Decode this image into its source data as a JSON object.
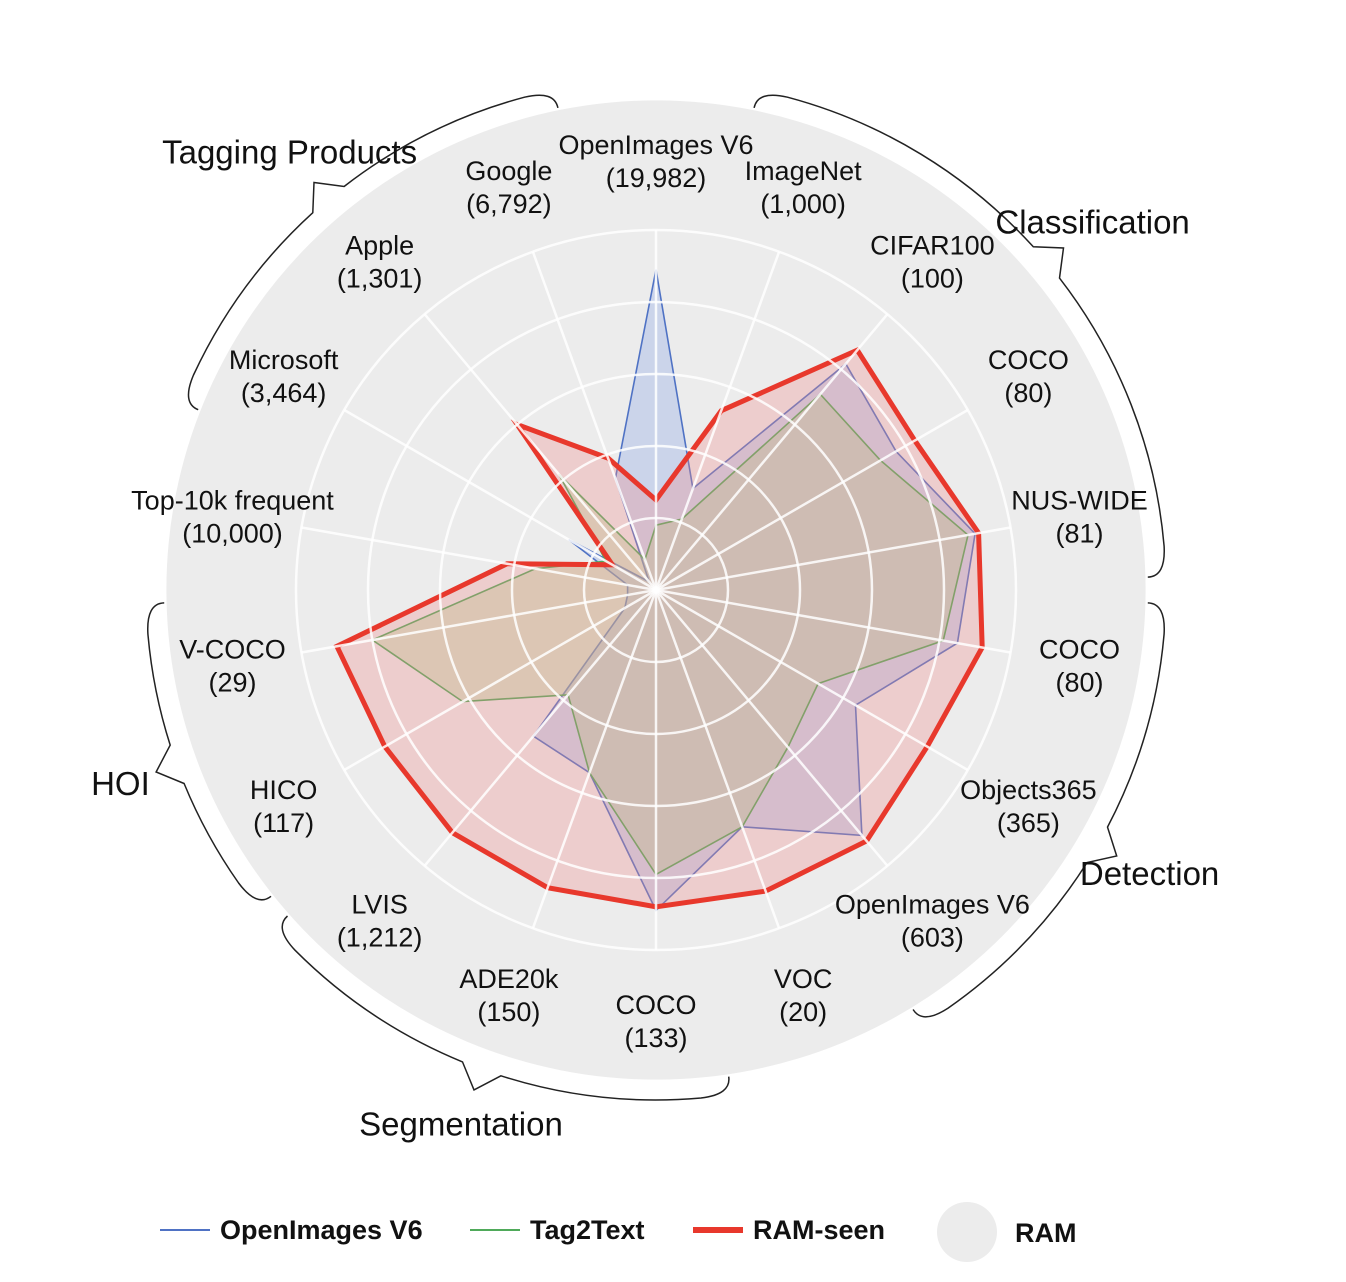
{
  "chart_data": {
    "type": "radar",
    "title": "",
    "scale_min": 0,
    "scale_max": 100,
    "grid_rings": 5,
    "grid": true,
    "legend_position": "bottom",
    "axes": [
      {
        "name": "OpenImages V6",
        "count": "(19,982)"
      },
      {
        "name": "ImageNet",
        "count": "(1,000)"
      },
      {
        "name": "CIFAR100",
        "count": "(100)"
      },
      {
        "name": "COCO",
        "count": "(80)"
      },
      {
        "name": "NUS-WIDE",
        "count": "(81)"
      },
      {
        "name": "COCO",
        "count": "(80)"
      },
      {
        "name": "Objects365",
        "count": "(365)"
      },
      {
        "name": "OpenImages V6",
        "count": "(603)"
      },
      {
        "name": "VOC",
        "count": "(20)"
      },
      {
        "name": "COCO",
        "count": "(133)"
      },
      {
        "name": "ADE20k",
        "count": "(150)"
      },
      {
        "name": "LVIS",
        "count": "(1,212)"
      },
      {
        "name": "HICO",
        "count": "(117)"
      },
      {
        "name": "V-COCO",
        "count": "(29)"
      },
      {
        "name": "Top-10k frequent",
        "count": "(10,000)"
      },
      {
        "name": "Microsoft",
        "count": "(3,464)"
      },
      {
        "name": "Apple",
        "count": "(1,301)"
      },
      {
        "name": "Google",
        "count": "(6,792)"
      }
    ],
    "groups": [
      {
        "name": "Classification",
        "axes": [
          1,
          2,
          3,
          4
        ]
      },
      {
        "name": "Detection",
        "axes": [
          5,
          6,
          7
        ]
      },
      {
        "name": "Segmentation",
        "axes": [
          9,
          10,
          11
        ]
      },
      {
        "name": "HOI",
        "axes": [
          12,
          13
        ]
      },
      {
        "name": "Tagging Products",
        "axes": [
          15,
          16,
          17
        ]
      }
    ],
    "series": [
      {
        "name": "OpenImages V6",
        "color": "#4f72c4",
        "fill": "rgba(120,150,230,0.28)",
        "width": 1.6,
        "values": [
          89,
          30,
          82,
          77,
          90,
          85,
          64,
          89,
          70,
          89,
          54,
          53,
          10,
          8,
          8,
          28,
          3,
          33
        ]
      },
      {
        "name": "Tag2Text",
        "color": "#4faa5a",
        "fill": "rgba(170,210,140,0.38)",
        "width": 1.6,
        "values": [
          18,
          21,
          71,
          72,
          88,
          81,
          52,
          57,
          70,
          79,
          54,
          38,
          62,
          80,
          34,
          16,
          42,
          9
        ]
      },
      {
        "name": "RAM-seen",
        "color": "#e8382c",
        "fill": "rgba(240,140,140,0.32)",
        "width": 5,
        "values": [
          25,
          53,
          87,
          83,
          91,
          92,
          87,
          91,
          89,
          88,
          88,
          88,
          87,
          90,
          42,
          14,
          60,
          39
        ]
      }
    ],
    "envelope": {
      "name": "RAM",
      "color": "#ececec",
      "value": 136
    }
  }
}
